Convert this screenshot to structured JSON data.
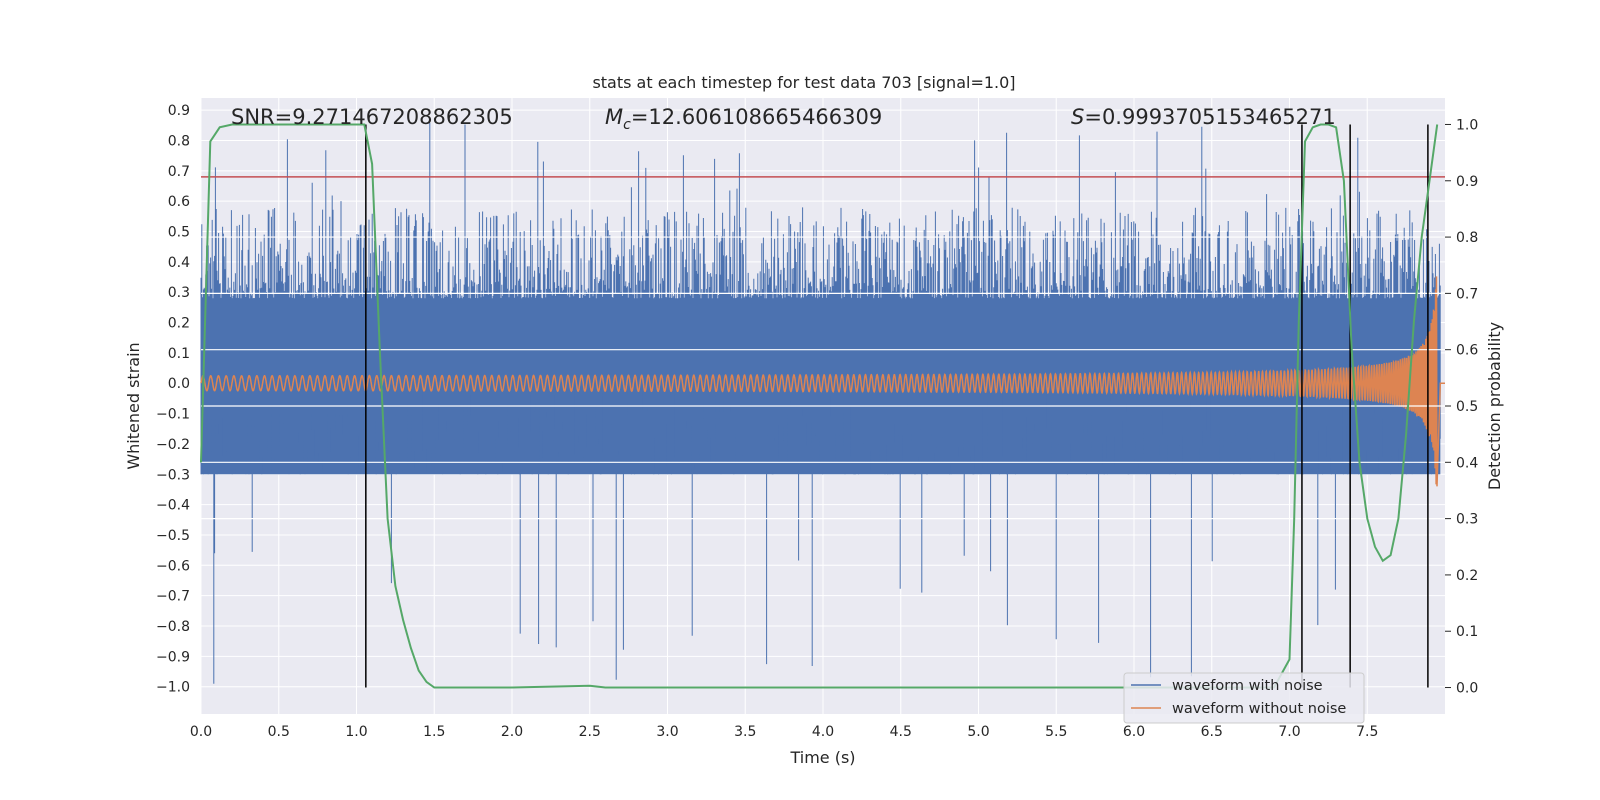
{
  "chart_data": {
    "type": "line",
    "title": "stats at each timestep for test data 703 [signal=1.0]",
    "xlabel": "Time (s)",
    "ylabel_left": "Whitened strain",
    "ylabel_right": "Detection probability",
    "xlim": [
      0.0,
      8.0
    ],
    "ylim_left": [
      -1.09,
      0.94
    ],
    "ylim_right": [
      -0.047,
      1.047
    ],
    "x_ticks": [
      "0.0",
      "0.5",
      "1.0",
      "1.5",
      "2.0",
      "2.5",
      "3.0",
      "3.5",
      "4.0",
      "4.5",
      "5.0",
      "5.5",
      "6.0",
      "6.5",
      "7.0",
      "7.5"
    ],
    "y_ticks_left": [
      "0.9",
      "0.8",
      "0.7",
      "0.6",
      "0.5",
      "0.4",
      "0.3",
      "0.2",
      "0.1",
      "0.0",
      "−0.1",
      "−0.2",
      "−0.3",
      "−0.4",
      "−0.5",
      "−0.6",
      "−0.7",
      "−0.8",
      "−0.9",
      "−1.0"
    ],
    "y_ticks_right": [
      "1.0",
      "0.9",
      "0.8",
      "0.7",
      "0.6",
      "0.5",
      "0.4",
      "0.3",
      "0.2",
      "0.1",
      "0.0"
    ],
    "grid": true,
    "legend_position": "lower-right",
    "annotations": {
      "snr": "SNR=9.271467208862305",
      "mc_symbol": "M",
      "mc_sub": "c",
      "mc_value": "=12.606108665466309",
      "s_symbol": "S",
      "s_value": "=0.9993705153465271"
    },
    "series": [
      {
        "name": "waveform with noise",
        "color": "#4c72b0",
        "envelope_upper": 0.48,
        "envelope_lower": -0.5,
        "peak_max": 0.87,
        "peak_min": -1.0
      },
      {
        "name": "waveform without noise",
        "color": "#dd8452",
        "start_amplitude": 0.02,
        "end_amplitude": 0.5,
        "chirp_end": 7.95
      },
      {
        "name": "detection probability",
        "color": "#55a868",
        "x": [
          0.0,
          0.06,
          0.12,
          0.2,
          0.4,
          0.8,
          1.05,
          1.1,
          1.15,
          1.2,
          1.25,
          1.3,
          1.35,
          1.4,
          1.45,
          1.5,
          1.6,
          2.0,
          2.5,
          2.6,
          3.0,
          4.0,
          5.0,
          6.0,
          6.9,
          7.0,
          7.03,
          7.06,
          7.1,
          7.15,
          7.2,
          7.25,
          7.3,
          7.35,
          7.4,
          7.45,
          7.5,
          7.55,
          7.6,
          7.65,
          7.7,
          7.75,
          7.8,
          7.85,
          7.9,
          7.95
        ],
        "y": [
          0.4,
          0.97,
          0.995,
          1.0,
          1.0,
          1.0,
          1.0,
          0.93,
          0.6,
          0.3,
          0.18,
          0.12,
          0.07,
          0.03,
          0.01,
          0.0,
          0.0,
          0.0,
          0.003,
          0.0,
          0.0,
          0.0,
          0.0,
          0.0,
          0.0,
          0.05,
          0.3,
          0.65,
          0.97,
          0.995,
          1.0,
          1.0,
          0.995,
          0.9,
          0.6,
          0.4,
          0.3,
          0.25,
          0.225,
          0.235,
          0.3,
          0.45,
          0.65,
          0.8,
          0.9,
          1.0
        ]
      }
    ],
    "threshold_line": {
      "value": 0.68,
      "color": "#c44e52"
    },
    "vertical_lines": [
      1.06,
      7.08,
      7.39,
      7.89
    ]
  }
}
